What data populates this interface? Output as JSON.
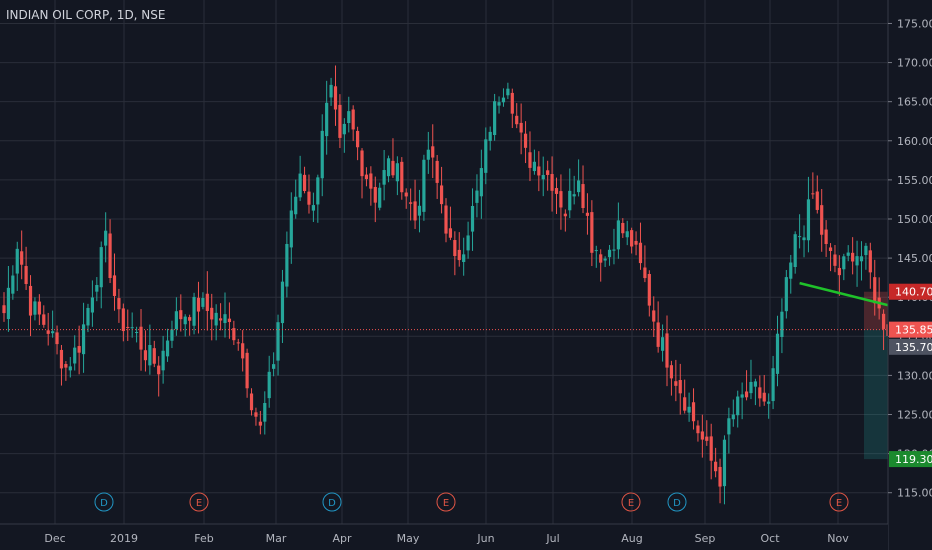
{
  "header": {
    "title": "INDIAN OIL CORP, 1D, NSE"
  },
  "colors": {
    "background": "#131722",
    "up": "#26a69a",
    "down": "#ef5350",
    "grid": "#2a2e39",
    "trendline": "#1fc22a"
  },
  "chart_data": {
    "type": "candlestick",
    "ylim": [
      111,
      178
    ],
    "y_ticks": [
      "115.00",
      "120.00",
      "125.00",
      "130.00",
      "135.00",
      "140.00",
      "145.00",
      "150.00",
      "155.00",
      "160.00",
      "165.00",
      "170.00",
      "175.00"
    ],
    "x_ticks": [
      "Dec",
      "2019",
      "Feb",
      "Mar",
      "Apr",
      "May",
      "Jun",
      "Jul",
      "Aug",
      "Sep",
      "Oct",
      "Nov"
    ],
    "anchors": [
      [
        0,
        138
      ],
      [
        3,
        147
      ],
      [
        6,
        139
      ],
      [
        10,
        136
      ],
      [
        14,
        131
      ],
      [
        17,
        134
      ],
      [
        20,
        141
      ],
      [
        23,
        147
      ],
      [
        26,
        137
      ],
      [
        29,
        136
      ],
      [
        32,
        133
      ],
      [
        35,
        131
      ],
      [
        38,
        137
      ],
      [
        41,
        138
      ],
      [
        44,
        139
      ],
      [
        47,
        138
      ],
      [
        50,
        137
      ],
      [
        53,
        135
      ],
      [
        56,
        127
      ],
      [
        58,
        123
      ],
      [
        61,
        132
      ],
      [
        64,
        147
      ],
      [
        67,
        156
      ],
      [
        70,
        151
      ],
      [
        72,
        162
      ],
      [
        74,
        166
      ],
      [
        76,
        159
      ],
      [
        78,
        163
      ],
      [
        81,
        157
      ],
      [
        84,
        153
      ],
      [
        87,
        157
      ],
      [
        90,
        155
      ],
      [
        93,
        150
      ],
      [
        96,
        159
      ],
      [
        99,
        152
      ],
      [
        102,
        144
      ],
      [
        104,
        147
      ],
      [
        107,
        153
      ],
      [
        110,
        162
      ],
      [
        112,
        166
      ],
      [
        114,
        168
      ],
      [
        116,
        162
      ],
      [
        118,
        158
      ],
      [
        121,
        157
      ],
      [
        124,
        155
      ],
      [
        127,
        151
      ],
      [
        130,
        156
      ],
      [
        133,
        147
      ],
      [
        136,
        145
      ],
      [
        139,
        149
      ],
      [
        142,
        147
      ],
      [
        145,
        142
      ],
      [
        148,
        135
      ],
      [
        151,
        131
      ],
      [
        154,
        127
      ],
      [
        157,
        123
      ],
      [
        160,
        119
      ],
      [
        162,
        117
      ],
      [
        164,
        124
      ],
      [
        167,
        127
      ],
      [
        170,
        128
      ],
      [
        173,
        126
      ],
      [
        176,
        138
      ],
      [
        179,
        147
      ],
      [
        181,
        149
      ],
      [
        183,
        153
      ],
      [
        186,
        146
      ],
      [
        189,
        143
      ],
      [
        192,
        146
      ],
      [
        195,
        145
      ],
      [
        198,
        138
      ],
      [
        201,
        135
      ]
    ],
    "trendline": {
      "from": [
        180,
        141.8
      ],
      "to": [
        202,
        138.7
      ]
    },
    "price_tags": [
      {
        "label": "140.70",
        "value": 140.7,
        "color": "#c62828"
      },
      {
        "label": "135.85",
        "value": 135.85,
        "color": "#ef5350"
      },
      {
        "label": "135.70",
        "value": 135.7,
        "color": "#4e5361"
      },
      {
        "label": "119.30",
        "value": 119.3,
        "color": "#1b8a2e"
      }
    ],
    "current_price": 135.85,
    "position": {
      "entry": 135.85,
      "stop": 140.7,
      "target": 119.3
    },
    "events": [
      {
        "letter": "D",
        "type": "dividend"
      },
      {
        "letter": "E",
        "type": "earnings"
      },
      {
        "letter": "D",
        "type": "dividend"
      },
      {
        "letter": "E",
        "type": "earnings"
      },
      {
        "letter": "E",
        "type": "earnings"
      },
      {
        "letter": "D",
        "type": "dividend"
      },
      {
        "letter": "E",
        "type": "earnings"
      }
    ]
  }
}
